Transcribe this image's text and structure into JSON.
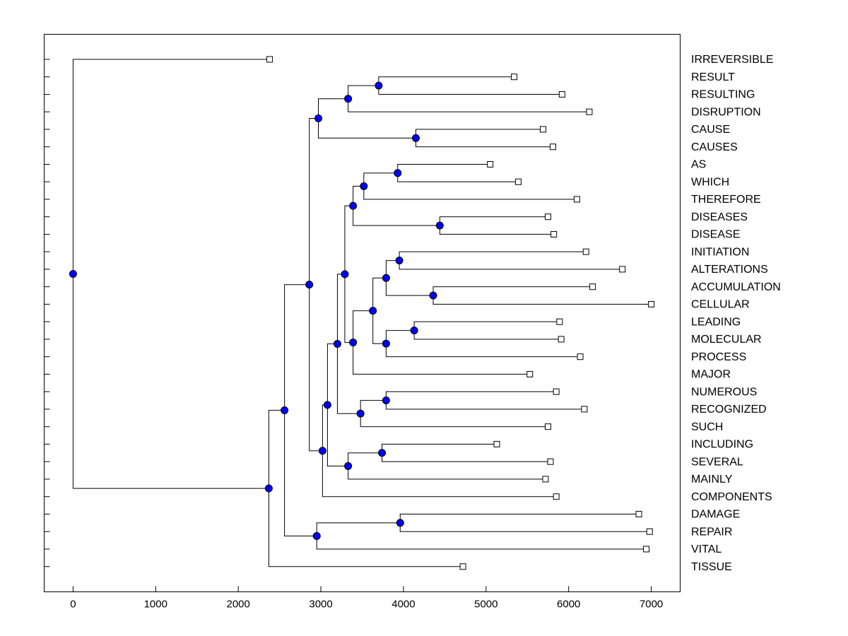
{
  "chart_data": {
    "type": "dendrogram",
    "orientation": "horizontal",
    "xlim": [
      -350,
      7350
    ],
    "x_ticks": [
      0,
      1000,
      2000,
      3000,
      4000,
      5000,
      6000,
      7000
    ],
    "x_tick_labels": [
      "0",
      "1000",
      "2000",
      "3000",
      "4000",
      "5000",
      "6000",
      "7000"
    ],
    "leaves": [
      {
        "label": "IRREVERSIBLE",
        "value": 2380
      },
      {
        "label": "RESULT",
        "value": 5340
      },
      {
        "label": "RESULTING",
        "value": 5920
      },
      {
        "label": "DISRUPTION",
        "value": 6250
      },
      {
        "label": "CAUSE",
        "value": 5690
      },
      {
        "label": "CAUSES",
        "value": 5810
      },
      {
        "label": "AS",
        "value": 5050
      },
      {
        "label": "WHICH",
        "value": 5390
      },
      {
        "label": "THEREFORE",
        "value": 6100
      },
      {
        "label": "DISEASES",
        "value": 5750
      },
      {
        "label": "DISEASE",
        "value": 5820
      },
      {
        "label": "INITIATION",
        "value": 6210
      },
      {
        "label": "ALTERATIONS",
        "value": 6650
      },
      {
        "label": "ACCUMULATION",
        "value": 6290
      },
      {
        "label": "CELLULAR",
        "value": 7000
      },
      {
        "label": "LEADING",
        "value": 5890
      },
      {
        "label": "MOLECULAR",
        "value": 5910
      },
      {
        "label": "PROCESS",
        "value": 6140
      },
      {
        "label": "MAJOR",
        "value": 5530
      },
      {
        "label": "NUMEROUS",
        "value": 5850
      },
      {
        "label": "RECOGNIZED",
        "value": 6190
      },
      {
        "label": "SUCH",
        "value": 5750
      },
      {
        "label": "INCLUDING",
        "value": 5130
      },
      {
        "label": "SEVERAL",
        "value": 5780
      },
      {
        "label": "MAINLY",
        "value": 5720
      },
      {
        "label": "COMPONENTS",
        "value": 5850
      },
      {
        "label": "DAMAGE",
        "value": 6850
      },
      {
        "label": "REPAIR",
        "value": 6980
      },
      {
        "label": "VITAL",
        "value": 6940
      },
      {
        "label": "TISSUE",
        "value": 4720
      }
    ],
    "merges": [
      {
        "value": 3700,
        "children": [
          "RESULT",
          "RESULTING"
        ]
      },
      {
        "value": 3330,
        "children": [
          0,
          "DISRUPTION"
        ]
      },
      {
        "value": 4150,
        "children": [
          "CAUSE",
          "CAUSES"
        ]
      },
      {
        "value": 2970,
        "children": [
          1,
          2
        ]
      },
      {
        "value": 3930,
        "children": [
          "AS",
          "WHICH"
        ]
      },
      {
        "value": 3520,
        "children": [
          4,
          "THEREFORE"
        ]
      },
      {
        "value": 4440,
        "children": [
          "DISEASES",
          "DISEASE"
        ]
      },
      {
        "value": 3390,
        "children": [
          5,
          6
        ]
      },
      {
        "value": 3950,
        "children": [
          "INITIATION",
          "ALTERATIONS"
        ]
      },
      {
        "value": 4360,
        "children": [
          "ACCUMULATION",
          "CELLULAR"
        ]
      },
      {
        "value": 3790,
        "children": [
          8,
          9
        ]
      },
      {
        "value": 4130,
        "children": [
          "LEADING",
          "MOLECULAR"
        ]
      },
      {
        "value": 3790,
        "children": [
          11,
          "PROCESS"
        ]
      },
      {
        "value": 3630,
        "children": [
          10,
          12
        ]
      },
      {
        "value": 3390,
        "children": [
          13,
          "MAJOR"
        ]
      },
      {
        "value": 3290,
        "children": [
          7,
          14
        ]
      },
      {
        "value": 3790,
        "children": [
          "NUMEROUS",
          "RECOGNIZED"
        ]
      },
      {
        "value": 3480,
        "children": [
          16,
          "SUCH"
        ]
      },
      {
        "value": 3200,
        "children": [
          15,
          17
        ]
      },
      {
        "value": 3740,
        "children": [
          "INCLUDING",
          "SEVERAL"
        ]
      },
      {
        "value": 3330,
        "children": [
          19,
          "MAINLY"
        ]
      },
      {
        "value": 3080,
        "children": [
          18,
          20
        ]
      },
      {
        "value": 3020,
        "children": [
          21,
          "COMPONENTS"
        ]
      },
      {
        "value": 2860,
        "children": [
          3,
          22
        ]
      },
      {
        "value": 3960,
        "children": [
          "DAMAGE",
          "REPAIR"
        ]
      },
      {
        "value": 2950,
        "children": [
          24,
          "VITAL"
        ]
      },
      {
        "value": 2560,
        "children": [
          23,
          25
        ]
      },
      {
        "value": 2370,
        "children": [
          26,
          "TISSUE"
        ]
      },
      {
        "value": 0,
        "children": [
          "IRREVERSIBLE",
          27
        ]
      }
    ],
    "colors": {
      "node_fill": "#0000ff",
      "leaf_fill": "#ffffff",
      "line": "#000000",
      "background": "#ffffff"
    }
  }
}
